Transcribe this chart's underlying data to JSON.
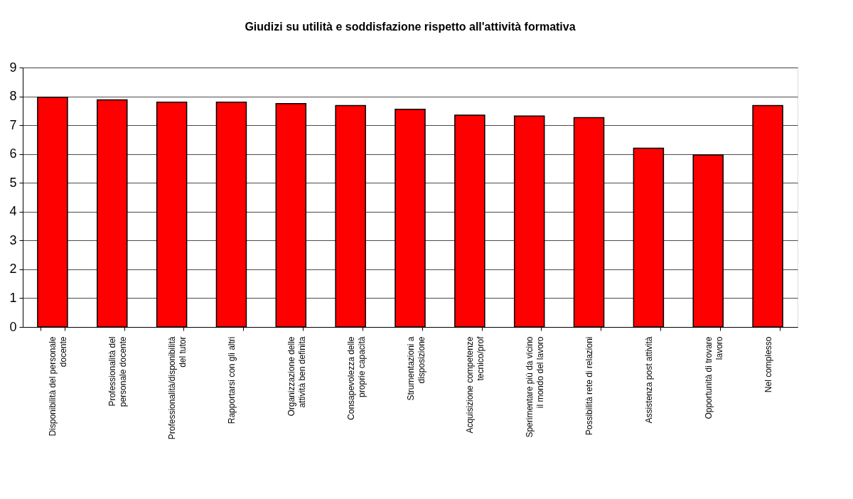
{
  "chart_data": {
    "type": "bar",
    "title": "Giudizi su utilità e soddisfazione rispetto all'attività formativa",
    "categories": [
      "Disponibilità del personale\ndocente",
      "Professionalità del\npersonale docente",
      "Professionalità/disponibilità\ndel tutor",
      "Rapportarsi con gli altri",
      "Organizzazione delle\nattività ben definita",
      "Consapevolezza delle\nproprie capacità",
      "Strumentazioni a\ndisposizione",
      "Acquisizione competenze\ntecnico/prof",
      "Sperimentare più da vicino\nil mondo del lavoro",
      "Possibilità rete di relazioni",
      "Assistenza post attività",
      "Opportunità di trovare\nlavoro",
      "Nel complesso"
    ],
    "values": [
      7.97,
      7.88,
      7.8,
      7.8,
      7.75,
      7.68,
      7.55,
      7.35,
      7.32,
      7.26,
      6.2,
      5.97,
      7.68
    ],
    "color": "#ff0000",
    "ylim": [
      0,
      9
    ],
    "yticks": [
      0,
      1,
      2,
      3,
      4,
      5,
      6,
      7,
      8,
      9
    ],
    "grid": "y"
  }
}
